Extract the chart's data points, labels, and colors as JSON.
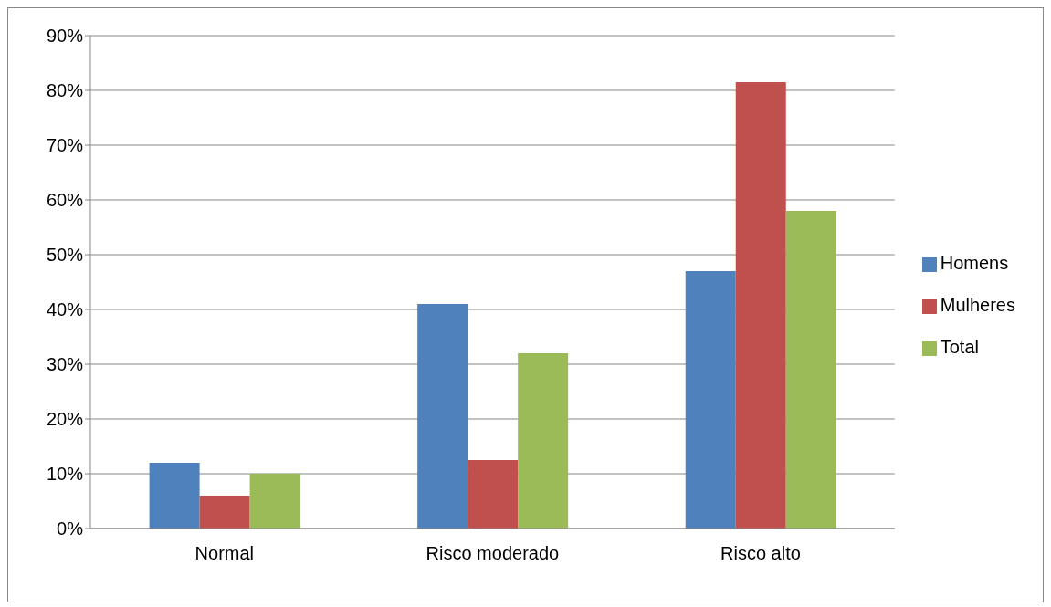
{
  "chart_data": {
    "type": "bar",
    "categories": [
      "Normal",
      "Risco moderado",
      "Risco alto"
    ],
    "series": [
      {
        "name": "Homens",
        "color": "#4f81bd",
        "values": [
          12,
          41,
          47
        ]
      },
      {
        "name": "Mulheres",
        "color": "#c0504d",
        "values": [
          6,
          12.5,
          81.5
        ]
      },
      {
        "name": "Total",
        "color": "#9bbb59",
        "values": [
          10,
          32,
          58
        ]
      }
    ],
    "ylim": [
      0,
      90
    ],
    "yticks": [
      {
        "value": 0,
        "label": "0%"
      },
      {
        "value": 10,
        "label": "10%"
      },
      {
        "value": 20,
        "label": "20%"
      },
      {
        "value": 30,
        "label": "30%"
      },
      {
        "value": 40,
        "label": "40%"
      },
      {
        "value": 50,
        "label": "50%"
      },
      {
        "value": 60,
        "label": "60%"
      },
      {
        "value": 70,
        "label": "70%"
      },
      {
        "value": 80,
        "label": "80%"
      },
      {
        "value": 90,
        "label": "90%"
      }
    ],
    "grid": "y",
    "legend": "right"
  }
}
